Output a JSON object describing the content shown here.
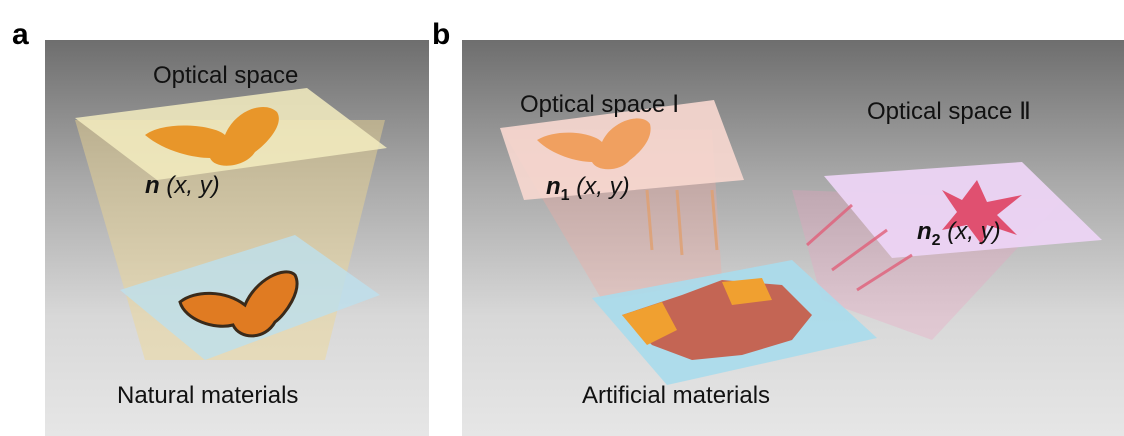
{
  "panel_a": {
    "label": "a",
    "title": "Optical space",
    "formula": {
      "symbol": "n",
      "args": "(x, y)"
    },
    "bottom_label": "Natural materials"
  },
  "panel_b": {
    "label": "b",
    "space1_title": "Optical space Ⅰ",
    "space2_title": "Optical space Ⅱ",
    "formula1": {
      "symbol": "n",
      "subscript": "1",
      "args": "(x, y)"
    },
    "formula2": {
      "symbol": "n",
      "subscript": "2",
      "args": "(x, y)"
    },
    "bottom_label": "Artificial materials"
  },
  "colors": {
    "butterfly": "#e8962a",
    "leaf": "#e0506a",
    "space1": "#f4b8b0",
    "space2": "#e8c8f0",
    "metasurface": "#a8dcec"
  }
}
